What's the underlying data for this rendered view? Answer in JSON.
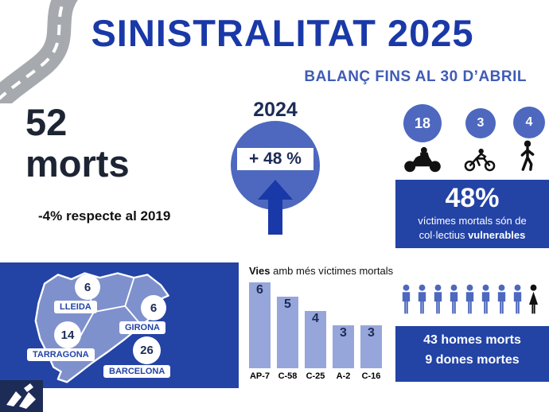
{
  "header": {
    "title": "SINISTRALITAT 2025",
    "subtitle": "BALANÇ FINS AL 30 D’ABRIL"
  },
  "summary": {
    "deaths_value": "52",
    "deaths_label": "morts",
    "comparison": "-4% respecte al 2019"
  },
  "yoy": {
    "year": "2024",
    "change_label": "+ 48 %"
  },
  "vulnerable": {
    "motorcyclists": "18",
    "cyclists": "3",
    "pedestrians": "4",
    "percent": "48%",
    "line1": "víctimes mortals són de",
    "line2_normal": "col·lectius ",
    "line2_bold": "vulnerables"
  },
  "map": {
    "regions": [
      {
        "name": "LLEIDA",
        "value": "6"
      },
      {
        "name": "GIRONA",
        "value": "6"
      },
      {
        "name": "TARRAGONA",
        "value": "14"
      },
      {
        "name": "BARCELONA",
        "value": "26"
      }
    ]
  },
  "chart_data": {
    "type": "bar",
    "title_bold": "Vies",
    "title_rest": " amb més víctimes mortals",
    "categories": [
      "AP-7",
      "C-58",
      "C-25",
      "A-2",
      "C-16"
    ],
    "values": [
      6,
      5,
      4,
      3,
      3
    ],
    "ylim": [
      0,
      6
    ],
    "xlabel": "",
    "ylabel": "",
    "legend": "none",
    "grid": false
  },
  "gender": {
    "men_icon_count": 8,
    "women_icon_count": 1,
    "men_label": "43 homes morts",
    "women_label": "9 dones mortes"
  },
  "icons": {
    "road": "road-icon",
    "motorcycle": "motorcycle-icon",
    "bicycle": "bicycle-icon",
    "pedestrian": "pedestrian-icon",
    "arrow_up": "arrow-up-icon",
    "man": "man-icon",
    "woman": "woman-icon",
    "logo": "transit-logo"
  },
  "colors": {
    "title_blue": "#1a39a8",
    "subtitle_blue": "#3f5cb5",
    "panel_blue": "#2343a5",
    "circle_blue": "#4d68be",
    "bar_blue": "#97a6da",
    "map_fill": "#7e91cd",
    "dark_navy": "#1d2b57"
  }
}
